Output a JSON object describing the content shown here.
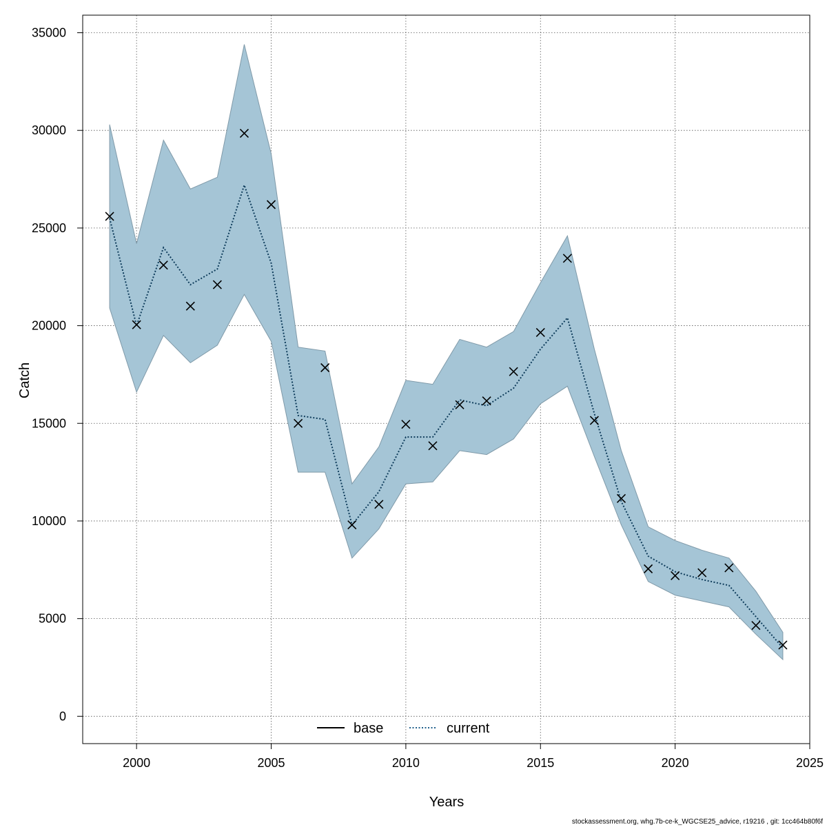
{
  "chart_data": {
    "type": "line",
    "xlabel": "Years",
    "ylabel": "Catch",
    "xlim": [
      1998,
      2025
    ],
    "ylim": [
      -1400,
      35900
    ],
    "x_ticks": [
      2000,
      2005,
      2010,
      2015,
      2020,
      2025
    ],
    "y_ticks": [
      0,
      5000,
      10000,
      15000,
      20000,
      25000,
      30000,
      35000
    ],
    "x_tick_labels": [
      "2000",
      "2005",
      "2010",
      "2015",
      "2020",
      "2025"
    ],
    "y_tick_labels": [
      "0",
      "5000",
      "10000",
      "15000",
      "20000",
      "25000",
      "30000",
      "35000"
    ],
    "grid": true,
    "legend_position": "bottom-center",
    "legend": [
      {
        "label": "base",
        "style": "solid",
        "color": "#000000"
      },
      {
        "label": "current",
        "style": "dotted",
        "color": "#1f5f8b"
      }
    ],
    "colors": {
      "band_fill": "#a5c5d6",
      "band_stroke": "#7f99a8",
      "current_line": "#0d3b5a",
      "observed_marker": "#000000"
    },
    "x": [
      1999,
      2000,
      2001,
      2002,
      2003,
      2004,
      2005,
      2006,
      2007,
      2008,
      2009,
      2010,
      2011,
      2012,
      2013,
      2014,
      2015,
      2016,
      2017,
      2018,
      2019,
      2020,
      2021,
      2022,
      2023,
      2024
    ],
    "series": [
      {
        "name": "current",
        "style": "dotted",
        "values": [
          25500,
          20000,
          24000,
          22100,
          22900,
          27200,
          23200,
          15400,
          15200,
          9800,
          11500,
          14300,
          14300,
          16200,
          15900,
          16800,
          18800,
          20400,
          15500,
          11000,
          8200,
          7400,
          7000,
          6700,
          5100,
          3500
        ]
      },
      {
        "name": "upper",
        "role": "confidence-upper",
        "values": [
          30300,
          24200,
          29500,
          27000,
          27600,
          34400,
          28800,
          18900,
          18700,
          11900,
          13800,
          17200,
          17000,
          19300,
          18900,
          19700,
          22200,
          24600,
          18800,
          13600,
          9700,
          9000,
          8500,
          8100,
          6400,
          4300
        ]
      },
      {
        "name": "lower",
        "role": "confidence-lower",
        "values": [
          20900,
          16600,
          19500,
          18100,
          19000,
          21600,
          19200,
          12500,
          12500,
          8100,
          9600,
          11900,
          12000,
          13600,
          13400,
          14200,
          16000,
          16900,
          13300,
          9800,
          6900,
          6200,
          5900,
          5600,
          4200,
          2900
        ]
      },
      {
        "name": "observed",
        "marker": "x",
        "values": [
          25600,
          20050,
          23100,
          21000,
          22100,
          29850,
          26200,
          15000,
          17850,
          9800,
          10850,
          14950,
          13850,
          15950,
          16150,
          17650,
          19650,
          23450,
          15150,
          11150,
          7550,
          7200,
          7350,
          7600,
          4650,
          3650
        ]
      }
    ]
  },
  "footer": "stockassessment.org, whg.7b-ce-k_WGCSE25_advice, r19216 , git: 1cc464b80f6f"
}
